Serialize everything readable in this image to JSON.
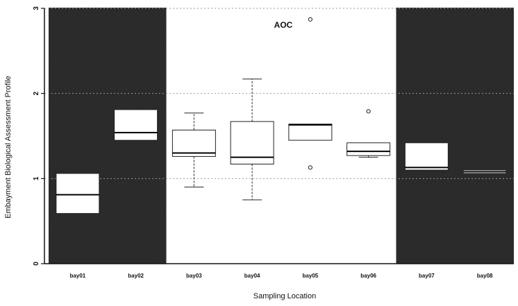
{
  "chart_data": {
    "type": "box",
    "xlabel": "Sampling Location",
    "ylabel": "Embayment Biological Assessment Profile",
    "ylim": [
      0,
      3
    ],
    "yticks": [
      0,
      1,
      2,
      3
    ],
    "ytick_labels": [
      "0",
      "1",
      "2",
      "3"
    ],
    "grid": "horizontal dotted",
    "categories": [
      "bay01",
      "bay02",
      "bay03",
      "bay04",
      "bay05",
      "bay06",
      "bay07",
      "bay08"
    ],
    "regions": [
      {
        "label": "",
        "from": "bay01",
        "to": "bay02",
        "shading": "dark"
      },
      {
        "label": "AOC",
        "from": "bay03",
        "to": "bay06",
        "shading": "none"
      },
      {
        "label": "",
        "from": "bay07",
        "to": "bay08",
        "shading": "dark"
      }
    ],
    "boxes": [
      {
        "category": "bay01",
        "q1": 0.59,
        "median": 0.81,
        "q3": 1.06,
        "whisker_low": null,
        "whisker_high": null,
        "outliers": []
      },
      {
        "category": "bay02",
        "q1": 1.45,
        "median": 1.54,
        "q3": 1.81,
        "whisker_low": null,
        "whisker_high": null,
        "outliers": []
      },
      {
        "category": "bay03",
        "q1": 1.26,
        "median": 1.3,
        "q3": 1.57,
        "whisker_low": 0.9,
        "whisker_high": 1.77,
        "outliers": []
      },
      {
        "category": "bay04",
        "q1": 1.17,
        "median": 1.25,
        "q3": 1.67,
        "whisker_low": 0.75,
        "whisker_high": 2.17,
        "outliers": []
      },
      {
        "category": "bay05",
        "q1": 1.45,
        "median": 1.63,
        "q3": 1.64,
        "whisker_low": null,
        "whisker_high": null,
        "outliers": [
          2.87,
          1.13
        ]
      },
      {
        "category": "bay06",
        "q1": 1.27,
        "median": 1.32,
        "q3": 1.42,
        "whisker_low": 1.25,
        "whisker_high": 1.42,
        "outliers": [
          1.79
        ]
      },
      {
        "category": "bay07",
        "q1": 1.1,
        "median": 1.13,
        "q3": 1.42,
        "whisker_low": null,
        "whisker_high": null,
        "outliers": []
      },
      {
        "category": "bay08",
        "q1": 1.06,
        "median": 1.08,
        "q3": 1.1,
        "whisker_low": null,
        "whisker_high": null,
        "outliers": []
      }
    ]
  }
}
